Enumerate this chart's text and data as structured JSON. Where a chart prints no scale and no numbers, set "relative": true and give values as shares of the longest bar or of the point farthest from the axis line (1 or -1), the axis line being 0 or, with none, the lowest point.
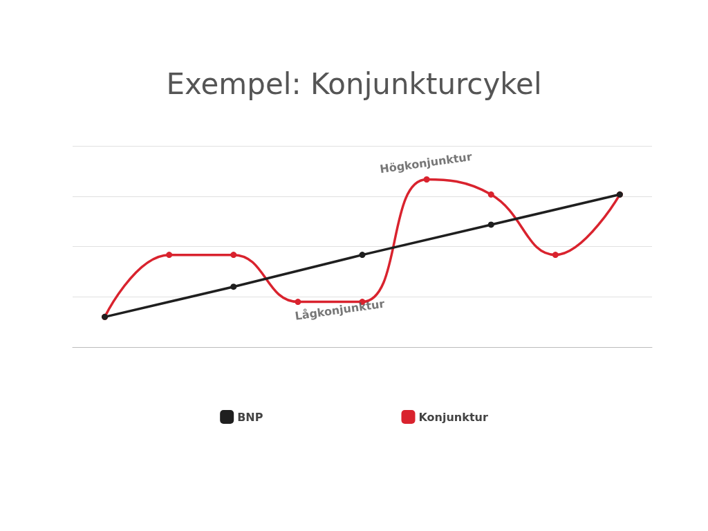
{
  "chart_data": {
    "type": "line",
    "title": "Exempel: Konjunkturcykel",
    "relative": true,
    "categories": [
      null,
      null,
      null,
      null,
      null,
      null,
      null,
      null,
      null
    ],
    "series": [
      {
        "name": "BNP",
        "color": "#1f1f1f",
        "values": [
          0.18,
          null,
          0.36,
          null,
          0.55,
          null,
          0.73,
          null,
          0.91
        ]
      },
      {
        "name": "Konjunktur",
        "color": "#d9232e",
        "values": [
          0.18,
          0.55,
          0.55,
          0.27,
          0.27,
          1,
          0.91,
          0.55,
          0.91
        ]
      }
    ],
    "annotations": [
      "Högkonjunktur",
      "Lågkonjunktur"
    ],
    "grid": "y",
    "legend": "bottom",
    "marker": "circle",
    "line_style": "solid"
  }
}
